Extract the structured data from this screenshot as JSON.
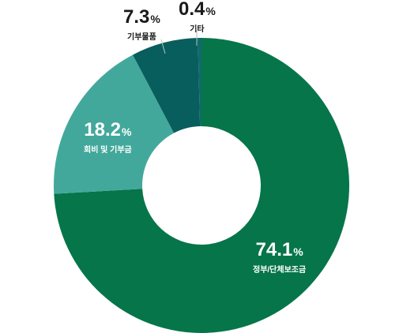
{
  "chart_data": {
    "type": "pie",
    "style": "donut",
    "title": "",
    "categories": [
      "정부/단체보조금",
      "회비 및 기부금",
      "기부물품",
      "기타"
    ],
    "values": [
      74.1,
      18.2,
      7.3,
      0.4
    ],
    "unit": "%",
    "colors": [
      "#06754a",
      "#43a89c",
      "#085e5c",
      "#0f6b6b"
    ],
    "labels": [
      {
        "value": "74.1",
        "unit": "%",
        "name": "정부/단체보조금"
      },
      {
        "value": "18.2",
        "unit": "%",
        "name": "회비 및 기부금"
      },
      {
        "value": "7.3",
        "unit": "%",
        "name": "기부물품"
      },
      {
        "value": "0.4",
        "unit": "%",
        "name": "기타"
      }
    ]
  }
}
